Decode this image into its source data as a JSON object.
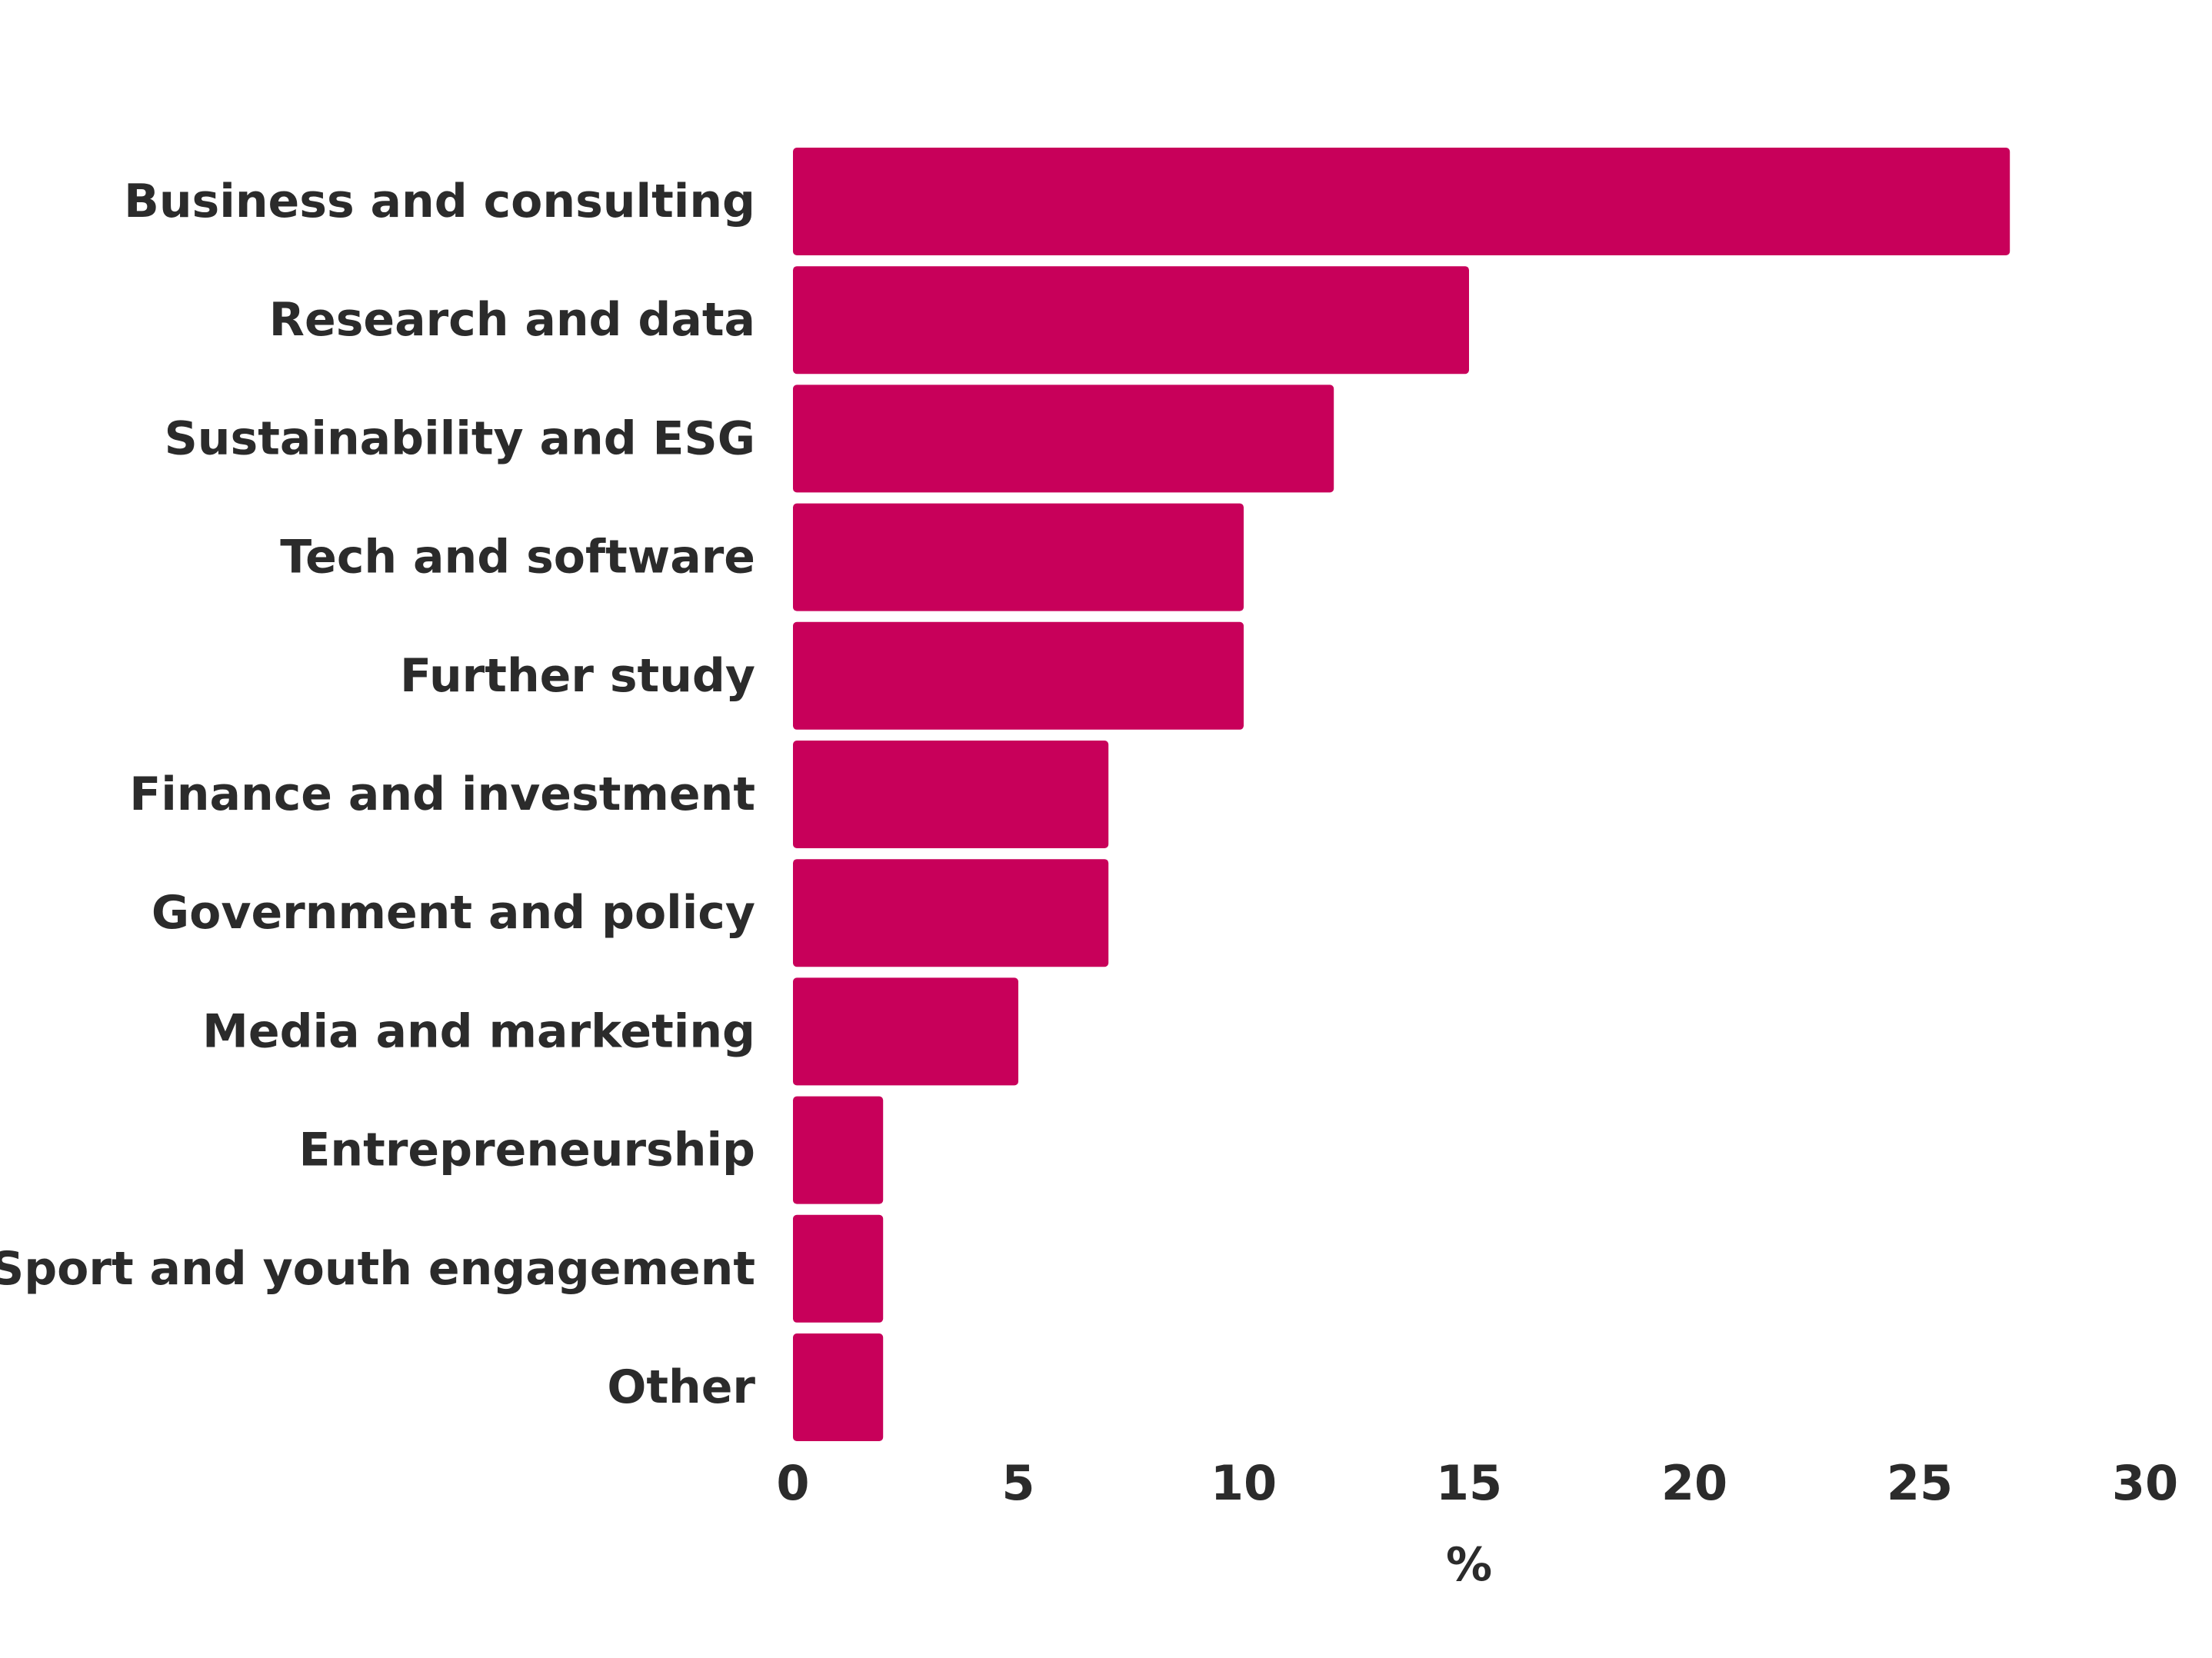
{
  "chart_data": {
    "type": "bar",
    "orientation": "horizontal",
    "title": "",
    "xlabel": "%",
    "ylabel": "",
    "categories": [
      "Business and consulting",
      "Research and data",
      "Sustainability and ESG",
      "Tech and software",
      "Further study",
      "Finance and investment",
      "Government and policy",
      "Media and marketing",
      "Entrepreneurship",
      "Sport and youth engagement",
      "Other"
    ],
    "values": [
      27,
      15,
      12,
      10,
      10,
      7,
      7,
      5,
      2,
      2,
      2
    ],
    "xlim": [
      0,
      30
    ],
    "xticks": [
      0,
      5,
      10,
      15,
      20,
      25,
      30
    ],
    "xtick_labels": [
      "0",
      "5",
      "10",
      "15",
      "20",
      "25",
      "30"
    ],
    "grid": false,
    "legend": "none",
    "bar_color": "#c8005a"
  }
}
